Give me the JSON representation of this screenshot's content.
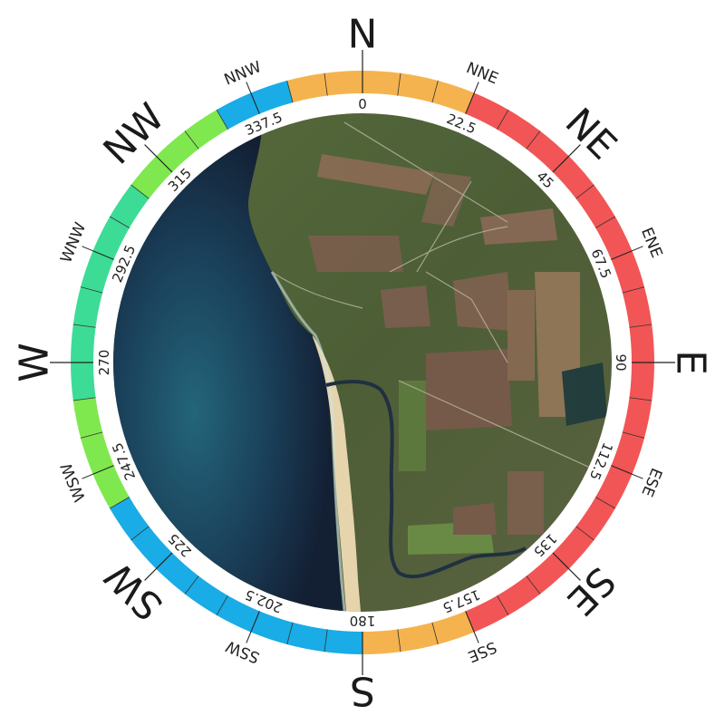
{
  "compass": {
    "cardinals": [
      {
        "label": "N",
        "deg": 0
      },
      {
        "label": "E",
        "deg": 90
      },
      {
        "label": "S",
        "deg": 180
      },
      {
        "label": "W",
        "deg": 270
      }
    ],
    "intercardinals": [
      {
        "label": "NE",
        "deg": 45
      },
      {
        "label": "SE",
        "deg": 135
      },
      {
        "label": "SW",
        "deg": 225
      },
      {
        "label": "NW",
        "deg": 315
      }
    ],
    "secondary": [
      {
        "label": "NNE",
        "deg": 22.5
      },
      {
        "label": "ENE",
        "deg": 67.5
      },
      {
        "label": "ESE",
        "deg": 112.5
      },
      {
        "label": "SSE",
        "deg": 157.5
      },
      {
        "label": "SSW",
        "deg": 202.5
      },
      {
        "label": "WSW",
        "deg": 247.5
      },
      {
        "label": "WNW",
        "deg": 292.5
      },
      {
        "label": "NNW",
        "deg": 337.5
      }
    ],
    "degree_labels": [
      {
        "text": "0",
        "deg": 0
      },
      {
        "text": "22.5",
        "deg": 22.5
      },
      {
        "text": "45",
        "deg": 45
      },
      {
        "text": "67.5",
        "deg": 67.5
      },
      {
        "text": "90",
        "deg": 90
      },
      {
        "text": "112.5",
        "deg": 112.5
      },
      {
        "text": "135",
        "deg": 135
      },
      {
        "text": "157.5",
        "deg": 157.5
      },
      {
        "text": "180",
        "deg": 180
      },
      {
        "text": "202.5",
        "deg": 202.5
      },
      {
        "text": "225",
        "deg": 225
      },
      {
        "text": "247.5",
        "deg": 247.5
      },
      {
        "text": "270",
        "deg": 270
      },
      {
        "text": "292.5",
        "deg": 292.5
      },
      {
        "text": "315",
        "deg": 315
      },
      {
        "text": "337.5",
        "deg": 337.5
      }
    ],
    "ring_segment_degrees": 7.5,
    "ring_colors": [
      {
        "from": 0,
        "to": 22.5,
        "color": "#f5b34f"
      },
      {
        "from": 22.5,
        "to": 157.5,
        "color": "#f25555"
      },
      {
        "from": 157.5,
        "to": 180,
        "color": "#f5b34f"
      },
      {
        "from": 180,
        "to": 240,
        "color": "#19ace6"
      },
      {
        "from": 240,
        "to": 262.5,
        "color": "#7fe84f"
      },
      {
        "from": 262.5,
        "to": 307.5,
        "color": "#3ddc96"
      },
      {
        "from": 307.5,
        "to": 330,
        "color": "#7fe84f"
      },
      {
        "from": 330,
        "to": 345,
        "color": "#19ace6"
      },
      {
        "from": 345,
        "to": 360,
        "color": "#f5b34f"
      }
    ],
    "map": {
      "sea_color": "#16324a",
      "land_color": "#4a5a35",
      "beach_color": "#e8d7b0"
    }
  }
}
